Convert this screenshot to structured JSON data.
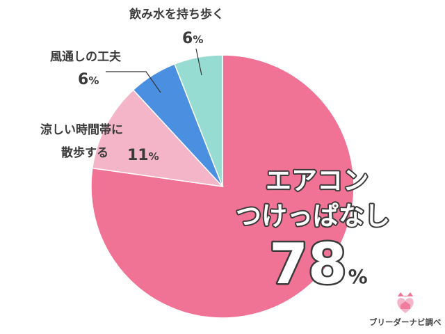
{
  "chart_data": {
    "type": "pie",
    "slices": [
      {
        "name": "エアコンつけっぱなし",
        "label_lines": [
          "エアコン",
          "つけっぱなし"
        ],
        "value": 78,
        "value_text": "78",
        "unit": "%",
        "color": "#f07396"
      },
      {
        "name": "涼しい時間帯に散歩する",
        "label_lines": [
          "涼しい時間帯に",
          "散歩する"
        ],
        "value": 11,
        "value_text": "11",
        "unit": "%",
        "color": "#f5b5c9"
      },
      {
        "name": "風通しの工夫",
        "label_lines": [
          "風通しの工夫"
        ],
        "value": 6,
        "value_text": "6",
        "unit": "%",
        "color": "#4a8fe0"
      },
      {
        "name": "飲み水を持ち歩く",
        "label_lines": [
          "飲み水を持ち歩く"
        ],
        "value": 6,
        "value_text": "6",
        "unit": "%",
        "color": "#96dcd2"
      }
    ],
    "start_angle_deg": 0,
    "direction": "clockwise"
  },
  "brand": {
    "text": "ブリーダーナビ調べ",
    "logo_color": "#f07396"
  }
}
